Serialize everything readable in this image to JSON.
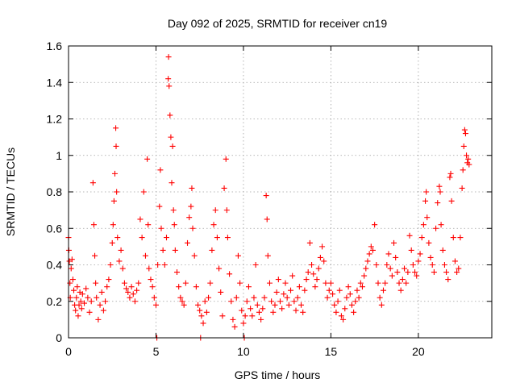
{
  "chart_data": {
    "type": "scatter",
    "title": "Day 092 of 2025, SRMTID for receiver cn19",
    "xlabel": "GPS time / hours",
    "ylabel": "SRMTID / TECUs",
    "xlim": [
      0,
      24.2
    ],
    "ylim": [
      0,
      1.6
    ],
    "x_ticks": [
      0,
      5,
      10,
      15,
      20
    ],
    "x_tick_labels": [
      "0",
      "5",
      "10",
      "15",
      "20"
    ],
    "y_ticks": [
      0,
      0.2,
      0.4,
      0.6,
      0.8,
      1.0,
      1.2,
      1.4,
      1.6
    ],
    "y_tick_labels": [
      "0",
      "0.2",
      "0.4",
      "0.6",
      "0.8",
      "1",
      "1.2",
      "1.4",
      "1.6"
    ],
    "grid": true,
    "marker": "+",
    "color": "#ff0000",
    "series": [
      {
        "name": "SRMTID",
        "points": [
          [
            0.0,
            0.55
          ],
          [
            0.02,
            0.48
          ],
          [
            0.05,
            0.42
          ],
          [
            0.08,
            0.3
          ],
          [
            0.1,
            0.22
          ],
          [
            0.15,
            0.38
          ],
          [
            0.2,
            0.43
          ],
          [
            0.25,
            0.32
          ],
          [
            0.3,
            0.26
          ],
          [
            0.35,
            0.18
          ],
          [
            0.4,
            0.15
          ],
          [
            0.45,
            0.22
          ],
          [
            0.5,
            0.28
          ],
          [
            0.55,
            0.12
          ],
          [
            0.6,
            0.18
          ],
          [
            0.65,
            0.25
          ],
          [
            0.7,
            0.2
          ],
          [
            0.75,
            0.16
          ],
          [
            0.8,
            0.24
          ],
          [
            0.9,
            0.19
          ],
          [
            1.0,
            0.27
          ],
          [
            1.1,
            0.22
          ],
          [
            1.2,
            0.14
          ],
          [
            1.3,
            0.2
          ],
          [
            1.4,
            0.85
          ],
          [
            1.45,
            0.62
          ],
          [
            1.5,
            0.45
          ],
          [
            1.55,
            0.3
          ],
          [
            1.6,
            0.22
          ],
          [
            1.7,
            0.1
          ],
          [
            1.8,
            0.18
          ],
          [
            1.9,
            0.25
          ],
          [
            2.0,
            0.15
          ],
          [
            2.1,
            0.2
          ],
          [
            2.2,
            0.28
          ],
          [
            2.3,
            0.32
          ],
          [
            2.4,
            0.4
          ],
          [
            2.5,
            0.52
          ],
          [
            2.55,
            0.62
          ],
          [
            2.6,
            0.75
          ],
          [
            2.65,
            0.9
          ],
          [
            2.7,
            1.15
          ],
          [
            2.72,
            1.05
          ],
          [
            2.75,
            0.8
          ],
          [
            2.8,
            0.55
          ],
          [
            2.9,
            0.42
          ],
          [
            3.0,
            0.48
          ],
          [
            3.1,
            0.38
          ],
          [
            3.2,
            0.3
          ],
          [
            3.3,
            0.27
          ],
          [
            3.4,
            0.25
          ],
          [
            3.5,
            0.22
          ],
          [
            3.6,
            0.28
          ],
          [
            3.7,
            0.24
          ],
          [
            3.8,
            0.2
          ],
          [
            3.9,
            0.26
          ],
          [
            4.0,
            0.3
          ],
          [
            4.1,
            0.65
          ],
          [
            4.2,
            0.55
          ],
          [
            4.3,
            0.8
          ],
          [
            4.4,
            0.45
          ],
          [
            4.5,
            0.98
          ],
          [
            4.55,
            0.62
          ],
          [
            4.6,
            0.38
          ],
          [
            4.7,
            0.32
          ],
          [
            4.8,
            0.28
          ],
          [
            4.9,
            0.22
          ],
          [
            5.0,
            0.18
          ],
          [
            5.05,
            0.0
          ],
          [
            5.1,
            0.4
          ],
          [
            5.2,
            0.72
          ],
          [
            5.25,
            0.92
          ],
          [
            5.3,
            0.6
          ],
          [
            5.4,
            0.48
          ],
          [
            5.5,
            0.4
          ],
          [
            5.6,
            0.55
          ],
          [
            5.7,
            1.42
          ],
          [
            5.72,
            1.54
          ],
          [
            5.75,
            1.38
          ],
          [
            5.8,
            1.22
          ],
          [
            5.85,
            1.1
          ],
          [
            5.9,
            0.85
          ],
          [
            5.95,
            1.05
          ],
          [
            6.0,
            0.7
          ],
          [
            6.05,
            0.62
          ],
          [
            6.1,
            0.48
          ],
          [
            6.2,
            0.36
          ],
          [
            6.3,
            0.28
          ],
          [
            6.4,
            0.22
          ],
          [
            6.5,
            0.2
          ],
          [
            6.6,
            0.18
          ],
          [
            6.7,
            0.3
          ],
          [
            6.8,
            0.52
          ],
          [
            6.9,
            0.66
          ],
          [
            7.0,
            0.72
          ],
          [
            7.05,
            0.82
          ],
          [
            7.1,
            0.6
          ],
          [
            7.2,
            0.45
          ],
          [
            7.3,
            0.28
          ],
          [
            7.4,
            0.18
          ],
          [
            7.5,
            0.15
          ],
          [
            7.55,
            0.0
          ],
          [
            7.6,
            0.12
          ],
          [
            7.7,
            0.08
          ],
          [
            7.8,
            0.2
          ],
          [
            7.9,
            0.14
          ],
          [
            8.0,
            0.22
          ],
          [
            8.1,
            0.3
          ],
          [
            8.2,
            0.48
          ],
          [
            8.3,
            0.62
          ],
          [
            8.4,
            0.7
          ],
          [
            8.5,
            0.55
          ],
          [
            8.6,
            0.38
          ],
          [
            8.7,
            0.25
          ],
          [
            8.8,
            0.12
          ],
          [
            8.9,
            0.82
          ],
          [
            9.0,
            0.98
          ],
          [
            9.05,
            0.7
          ],
          [
            9.1,
            0.55
          ],
          [
            9.2,
            0.35
          ],
          [
            9.3,
            0.2
          ],
          [
            9.4,
            0.1
          ],
          [
            9.5,
            0.06
          ],
          [
            9.6,
            0.22
          ],
          [
            9.7,
            0.45
          ],
          [
            9.8,
            0.3
          ],
          [
            9.9,
            0.15
          ],
          [
            10.0,
            0.08
          ],
          [
            10.05,
            0.0
          ],
          [
            10.1,
            0.12
          ],
          [
            10.2,
            0.2
          ],
          [
            10.3,
            0.28
          ],
          [
            10.4,
            0.16
          ],
          [
            10.5,
            0.12
          ],
          [
            10.6,
            0.22
          ],
          [
            10.7,
            0.4
          ],
          [
            10.8,
            0.18
          ],
          [
            10.9,
            0.14
          ],
          [
            11.0,
            0.1
          ],
          [
            11.1,
            0.16
          ],
          [
            11.2,
            0.22
          ],
          [
            11.3,
            0.78
          ],
          [
            11.35,
            0.65
          ],
          [
            11.4,
            0.45
          ],
          [
            11.5,
            0.3
          ],
          [
            11.6,
            0.2
          ],
          [
            11.7,
            0.14
          ],
          [
            11.8,
            0.18
          ],
          [
            11.9,
            0.25
          ],
          [
            12.0,
            0.32
          ],
          [
            12.1,
            0.2
          ],
          [
            12.2,
            0.16
          ],
          [
            12.3,
            0.24
          ],
          [
            12.4,
            0.3
          ],
          [
            12.5,
            0.22
          ],
          [
            12.6,
            0.18
          ],
          [
            12.7,
            0.26
          ],
          [
            12.8,
            0.34
          ],
          [
            12.9,
            0.2
          ],
          [
            13.0,
            0.15
          ],
          [
            13.1,
            0.22
          ],
          [
            13.2,
            0.28
          ],
          [
            13.3,
            0.18
          ],
          [
            13.4,
            0.14
          ],
          [
            13.5,
            0.26
          ],
          [
            13.6,
            0.32
          ],
          [
            13.7,
            0.36
          ],
          [
            13.8,
            0.52
          ],
          [
            13.9,
            0.4
          ],
          [
            14.0,
            0.35
          ],
          [
            14.1,
            0.28
          ],
          [
            14.2,
            0.32
          ],
          [
            14.3,
            0.38
          ],
          [
            14.4,
            0.44
          ],
          [
            14.5,
            0.5
          ],
          [
            14.6,
            0.42
          ],
          [
            14.7,
            0.3
          ],
          [
            14.8,
            0.22
          ],
          [
            14.9,
            0.26
          ],
          [
            15.0,
            0.3
          ],
          [
            15.1,
            0.24
          ],
          [
            15.2,
            0.18
          ],
          [
            15.3,
            0.14
          ],
          [
            15.4,
            0.2
          ],
          [
            15.5,
            0.26
          ],
          [
            15.6,
            0.12
          ],
          [
            15.7,
            0.1
          ],
          [
            15.8,
            0.16
          ],
          [
            15.9,
            0.22
          ],
          [
            16.0,
            0.28
          ],
          [
            16.1,
            0.24
          ],
          [
            16.2,
            0.18
          ],
          [
            16.3,
            0.14
          ],
          [
            16.4,
            0.2
          ],
          [
            16.5,
            0.26
          ],
          [
            16.6,
            0.22
          ],
          [
            16.7,
            0.3
          ],
          [
            16.8,
            0.28
          ],
          [
            16.9,
            0.34
          ],
          [
            17.0,
            0.38
          ],
          [
            17.1,
            0.42
          ],
          [
            17.2,
            0.46
          ],
          [
            17.3,
            0.5
          ],
          [
            17.4,
            0.48
          ],
          [
            17.5,
            0.62
          ],
          [
            17.6,
            0.4
          ],
          [
            17.7,
            0.3
          ],
          [
            17.8,
            0.22
          ],
          [
            17.9,
            0.18
          ],
          [
            18.0,
            0.26
          ],
          [
            18.1,
            0.3
          ],
          [
            18.2,
            0.4
          ],
          [
            18.3,
            0.46
          ],
          [
            18.4,
            0.38
          ],
          [
            18.5,
            0.34
          ],
          [
            18.6,
            0.52
          ],
          [
            18.7,
            0.44
          ],
          [
            18.8,
            0.36
          ],
          [
            18.9,
            0.3
          ],
          [
            19.0,
            0.26
          ],
          [
            19.1,
            0.32
          ],
          [
            19.2,
            0.38
          ],
          [
            19.3,
            0.3
          ],
          [
            19.4,
            0.36
          ],
          [
            19.5,
            0.56
          ],
          [
            19.6,
            0.48
          ],
          [
            19.7,
            0.4
          ],
          [
            19.8,
            0.36
          ],
          [
            19.9,
            0.34
          ],
          [
            20.0,
            0.42
          ],
          [
            20.1,
            0.46
          ],
          [
            20.2,
            0.55
          ],
          [
            20.3,
            0.62
          ],
          [
            20.4,
            0.75
          ],
          [
            20.45,
            0.8
          ],
          [
            20.5,
            0.66
          ],
          [
            20.6,
            0.52
          ],
          [
            20.7,
            0.44
          ],
          [
            20.8,
            0.4
          ],
          [
            20.9,
            0.36
          ],
          [
            21.0,
            0.6
          ],
          [
            21.1,
            0.74
          ],
          [
            21.2,
            0.83
          ],
          [
            21.25,
            0.8
          ],
          [
            21.3,
            0.62
          ],
          [
            21.4,
            0.48
          ],
          [
            21.5,
            0.4
          ],
          [
            21.6,
            0.36
          ],
          [
            21.7,
            0.32
          ],
          [
            21.8,
            0.88
          ],
          [
            21.85,
            0.9
          ],
          [
            21.9,
            0.75
          ],
          [
            22.0,
            0.55
          ],
          [
            22.1,
            0.42
          ],
          [
            22.2,
            0.36
          ],
          [
            22.3,
            0.38
          ],
          [
            22.4,
            0.55
          ],
          [
            22.5,
            0.82
          ],
          [
            22.55,
            0.92
          ],
          [
            22.6,
            1.05
          ],
          [
            22.65,
            1.14
          ],
          [
            22.7,
            1.12
          ],
          [
            22.75,
            1.0
          ],
          [
            22.8,
            0.96
          ],
          [
            22.85,
            0.98
          ],
          [
            22.9,
            0.95
          ]
        ]
      }
    ]
  }
}
